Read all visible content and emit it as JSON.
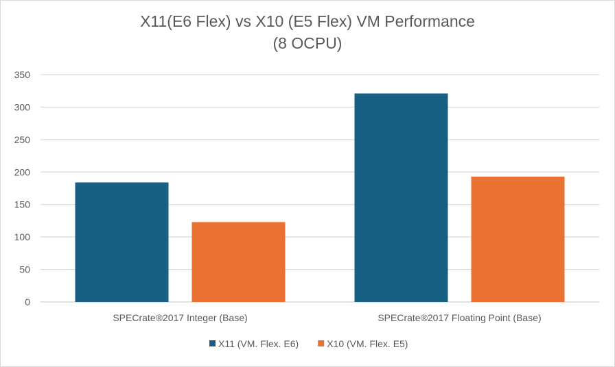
{
  "chart_data": {
    "type": "bar",
    "title": [
      "X11(E6 Flex) vs X10 (E5 Flex) VM Performance",
      "(8 OCPU)"
    ],
    "categories": [
      "SPECrate®2017 Integer  (Base)",
      "SPECrate®2017 Floating Point  (Base)"
    ],
    "series": [
      {
        "name": "X11 (VM. Flex. E6)",
        "values": [
          184,
          321
        ],
        "color": "#175f83"
      },
      {
        "name": "X10 (VM. Flex. E5)",
        "values": [
          123,
          193
        ],
        "color": "#e97132"
      }
    ],
    "ylim": [
      0,
      350
    ],
    "yticks": [
      0,
      50,
      100,
      150,
      200,
      250,
      300,
      350
    ],
    "grid": true,
    "legend": "bottom",
    "xlabel": "",
    "ylabel": ""
  }
}
